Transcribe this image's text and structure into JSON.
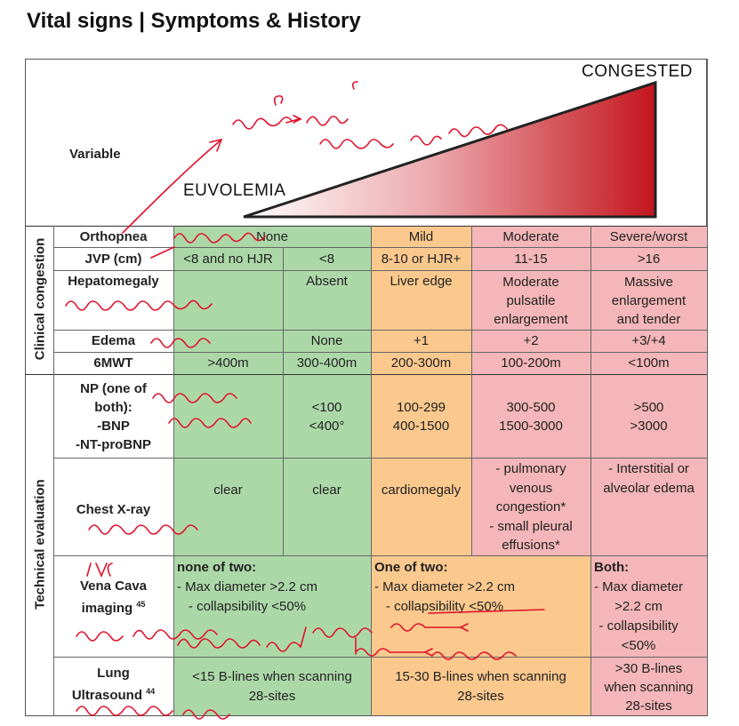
{
  "title": "Vital signs | Symptoms & History",
  "header": {
    "variable_label": "Variable",
    "euvolemia": "EUVOLEMIA",
    "congested": "CONGESTED"
  },
  "sections": {
    "clinical": "Clinical congestion",
    "technical": "Technical evaluation"
  },
  "rows": {
    "orthopnea": {
      "label": "Orthopnea",
      "none": "None",
      "mild": "Mild",
      "moderate": "Moderate",
      "severe": "Severe/worst"
    },
    "jvp": {
      "label": "JVP (cm)",
      "c1": "<8 and no HJR",
      "c2": "<8",
      "mild": "8-10 or HJR+",
      "moderate": "11-15",
      "severe": ">16"
    },
    "hepatomegaly": {
      "label": "Hepatomegaly",
      "c2": "Absent",
      "mild": "Liver edge",
      "moderate": "Moderate\npulsatile\nenlargement",
      "severe": "Massive\nenlargement\nand tender"
    },
    "edema": {
      "label": "Edema",
      "c2": "None",
      "mild": "+1",
      "moderate": "+2",
      "severe": "+3/+4"
    },
    "sixmwt": {
      "label": "6MWT",
      "c1": ">400m",
      "c2": "300-400m",
      "mild": "200-300m",
      "moderate": "100-200m",
      "severe": "<100m"
    },
    "np": {
      "label": "NP (one of\nboth):\n-BNP\n-NT-proBNP",
      "c2": "<100\n<400°",
      "mild": "100-299\n400-1500",
      "moderate": "300-500\n1500-3000",
      "severe": ">500\n>3000"
    },
    "cxr": {
      "label": "Chest X-ray",
      "c1": "clear",
      "c2": "clear",
      "mild": "cardiomegaly",
      "moderate": "- pulmonary\nvenous\ncongestion*\n- small pleural\neffusions*",
      "severe": "- Interstitial or\nalveolar edema"
    },
    "vena": {
      "label": "Vena Cava",
      "label2": "imaging",
      "sup": "45",
      "green": "none of two:\n- Max diameter >2.2 cm\n- collapsibility <50%",
      "green_head": "none of two:",
      "green_body": "- Max diameter >2.2 cm\n- collapsibility <50%",
      "orange_head": "One of two:",
      "orange_body": "- Max diameter >2.2 cm\n- collapsibility <50%",
      "pink_head": "Both:",
      "pink_body": "- Max diameter\n>2.2 cm\n- collapsibility\n<50%"
    },
    "lung": {
      "label": "Lung",
      "label2": "Ultrasound",
      "sup": "44",
      "green": "<15 B-lines when scanning\n28-sites",
      "orange": "15-30 B-lines when scanning\n28-sites",
      "pink": ">30 B-lines\nwhen scanning\n28-sites"
    }
  },
  "colors": {
    "green": "#acd8a8",
    "orange": "#fbc98e",
    "pink": "#f4b6b8",
    "ink": "#e0102a"
  }
}
